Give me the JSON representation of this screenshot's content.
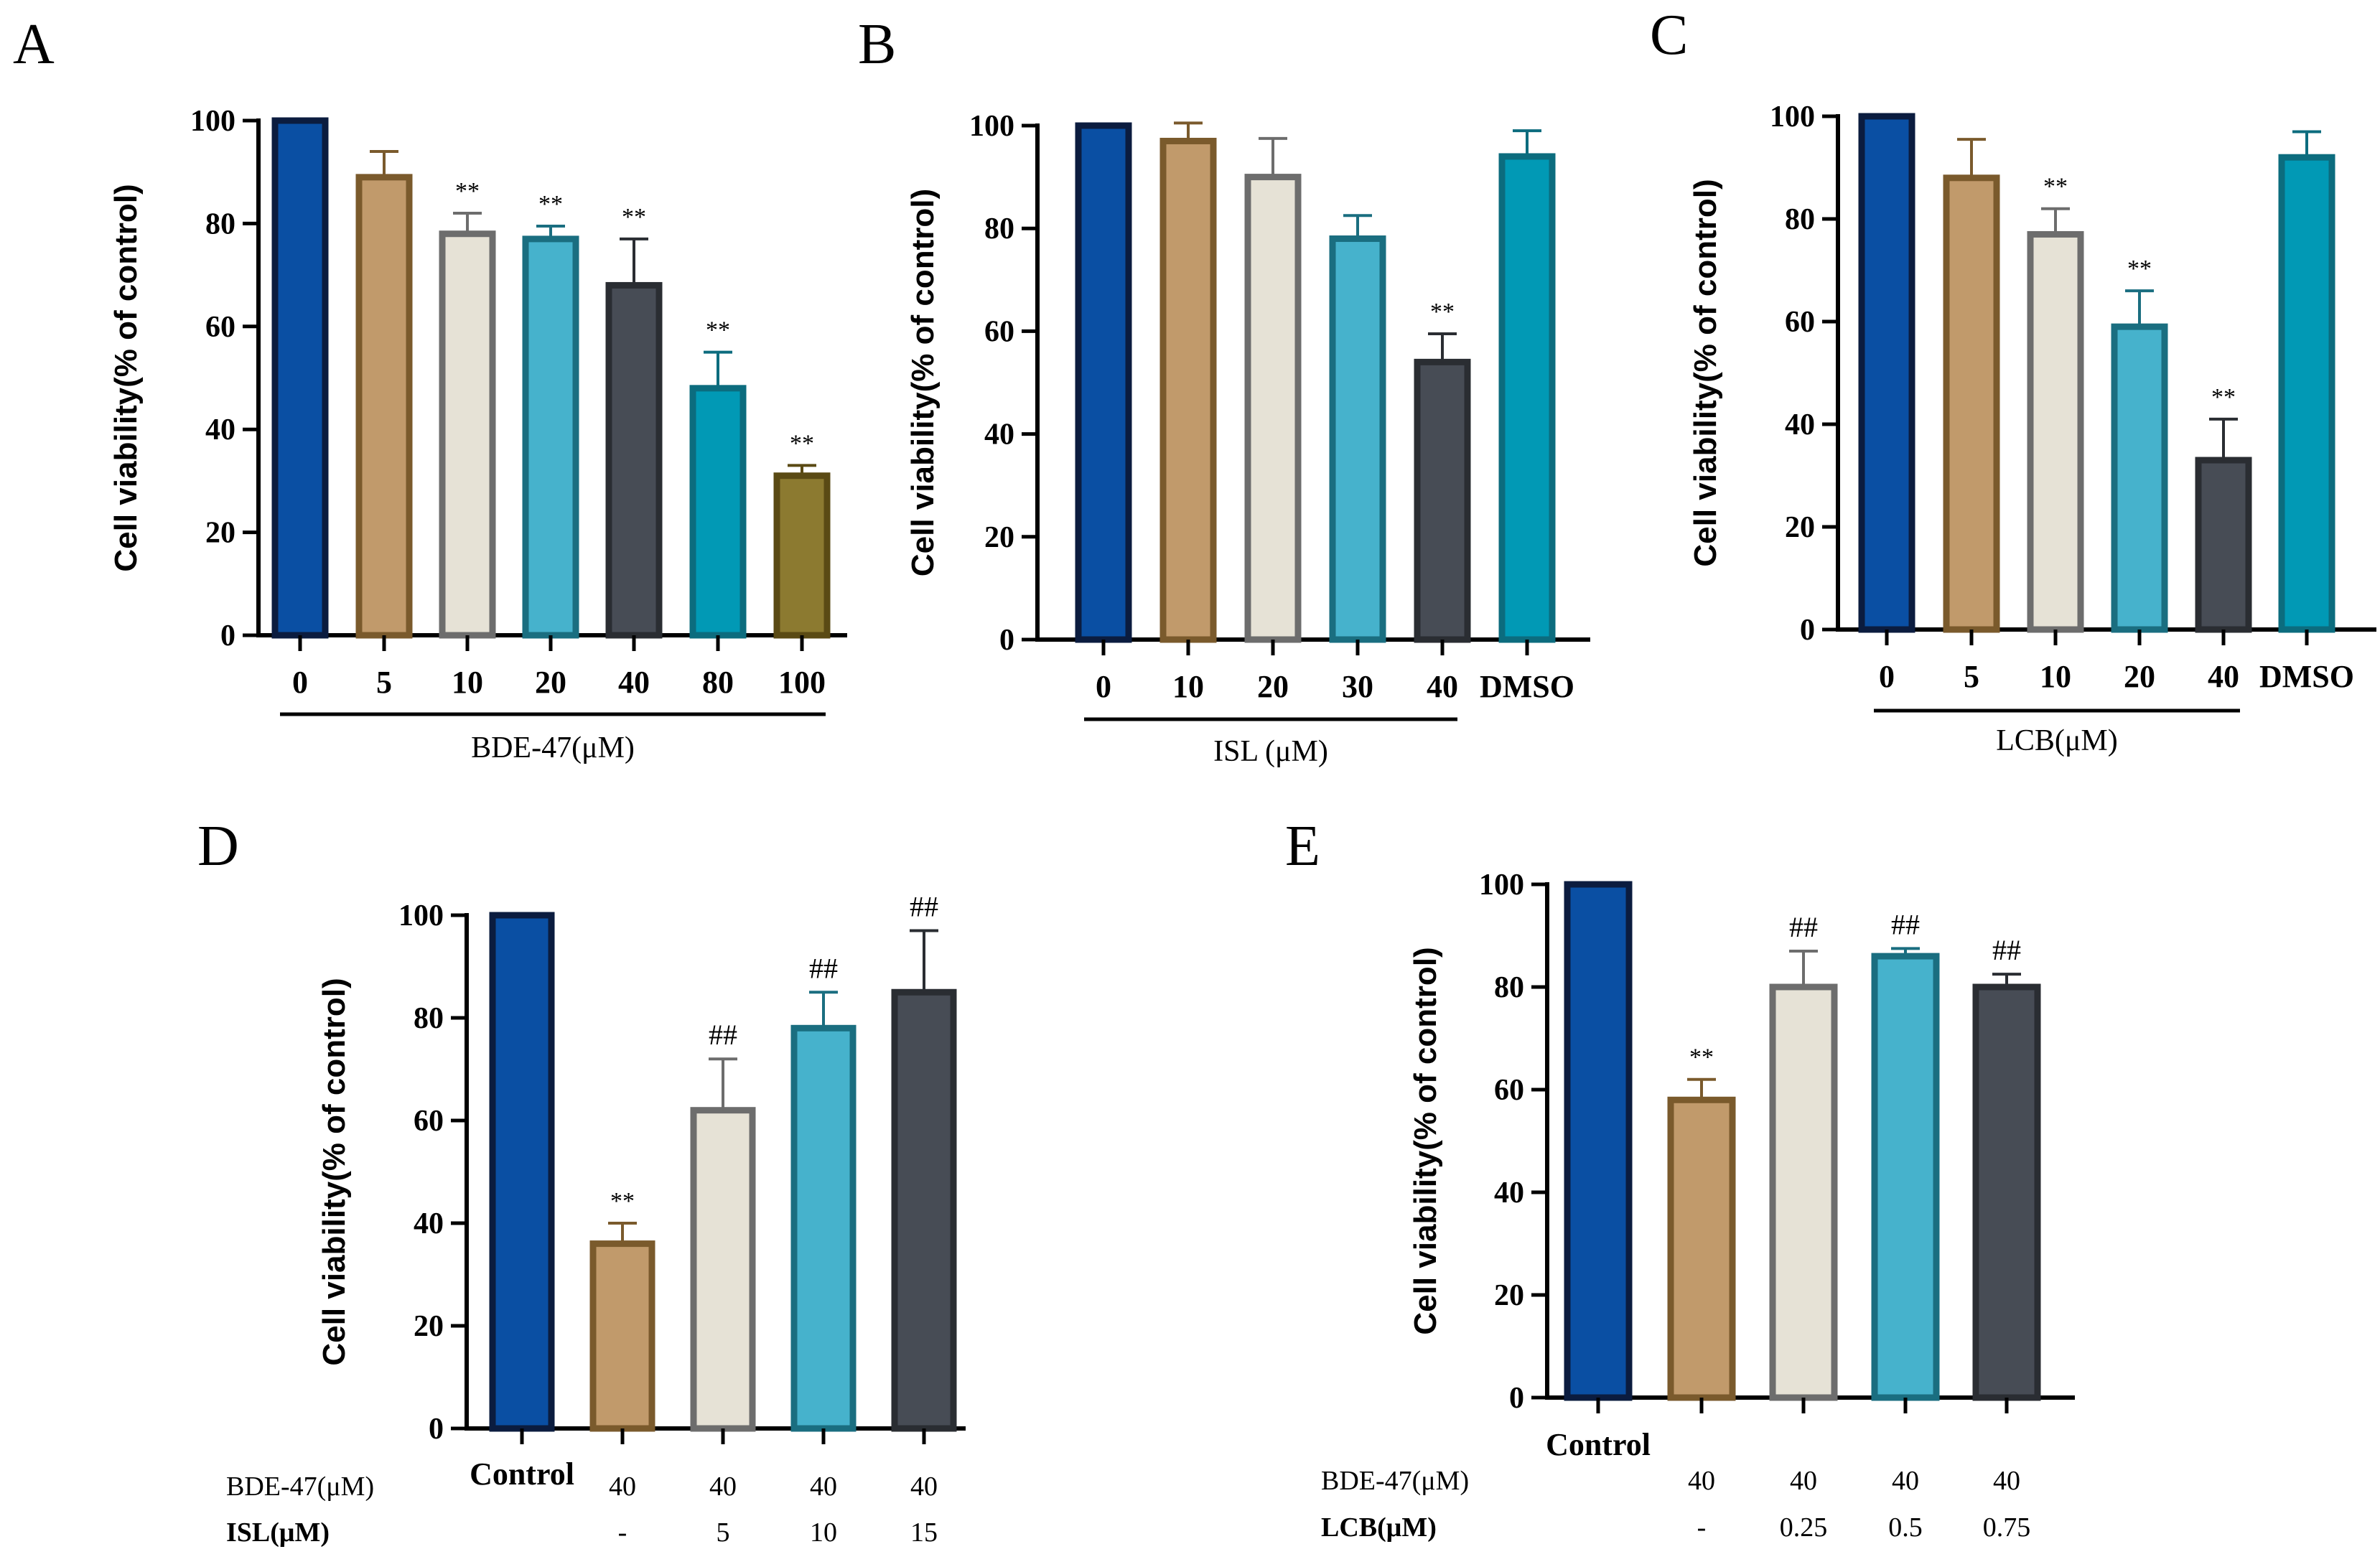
{
  "chart_data": [
    {
      "panel": "A",
      "type": "bar",
      "ylabel": "Cell viability(% of control)",
      "ylim": [
        0,
        100
      ],
      "yticks": [
        0,
        20,
        40,
        60,
        80,
        100
      ],
      "categories": [
        "0",
        "5",
        "10",
        "20",
        "40",
        "80",
        "100"
      ],
      "values": [
        100,
        89,
        78,
        77,
        68,
        48,
        31
      ],
      "errors": [
        0,
        5,
        4,
        2.5,
        9,
        7,
        2
      ],
      "significance": [
        "",
        "",
        "**",
        "**",
        "**",
        "**",
        "**"
      ],
      "colors": [
        "#0a4fa3",
        "#c19a6b",
        "#e6e2d6",
        "#46b2cc",
        "#474c55",
        "#0199b5",
        "#8c7a30"
      ],
      "edges": [
        "#0b1c3f",
        "#7a5a2c",
        "#6d6d6d",
        "#1a6e80",
        "#2a2d32",
        "#0c6c7e",
        "#5a4a14"
      ],
      "xtitle": "BDE-47(μM)",
      "xline_span": [
        0,
        6
      ],
      "extra_categories": []
    },
    {
      "panel": "B",
      "type": "bar",
      "ylabel": "Cell viability(% of control)",
      "ylim": [
        0,
        100
      ],
      "yticks": [
        0,
        20,
        40,
        60,
        80,
        100
      ],
      "categories": [
        "0",
        "10",
        "20",
        "30",
        "40",
        "DMSO"
      ],
      "values": [
        100,
        97,
        90,
        78,
        54,
        94
      ],
      "errors": [
        0,
        3.5,
        7.5,
        4.5,
        5.5,
        5
      ],
      "significance": [
        "",
        "",
        "",
        "",
        "**",
        ""
      ],
      "colors": [
        "#0a4fa3",
        "#c19a6b",
        "#e6e2d6",
        "#46b2cc",
        "#474c55",
        "#0199b5"
      ],
      "edges": [
        "#0b1c3f",
        "#7a5a2c",
        "#6d6d6d",
        "#1a6e80",
        "#2a2d32",
        "#0c6c7e"
      ],
      "xtitle": "ISL (μM)",
      "xline_span": [
        0,
        4
      ]
    },
    {
      "panel": "C",
      "type": "bar",
      "ylabel": "Cell viability(% of control)",
      "ylim": [
        0,
        100
      ],
      "yticks": [
        0,
        20,
        40,
        60,
        80,
        100
      ],
      "categories": [
        "0",
        "5",
        "10",
        "20",
        "40",
        "DMSO"
      ],
      "values": [
        100,
        88,
        77,
        59,
        33,
        92
      ],
      "errors": [
        0,
        7.5,
        5,
        7,
        8,
        5
      ],
      "significance": [
        "",
        "",
        "**",
        "**",
        "**",
        ""
      ],
      "colors": [
        "#0a4fa3",
        "#c19a6b",
        "#e6e2d6",
        "#46b2cc",
        "#474c55",
        "#0199b5"
      ],
      "edges": [
        "#0b1c3f",
        "#7a5a2c",
        "#6d6d6d",
        "#1a6e80",
        "#2a2d32",
        "#0c6c7e"
      ],
      "xtitle": "LCB(μM)",
      "xline_span": [
        0,
        4
      ]
    },
    {
      "panel": "D",
      "type": "bar",
      "ylabel": "Cell viability(% of control)",
      "ylim": [
        0,
        100
      ],
      "yticks": [
        0,
        20,
        40,
        60,
        80,
        100
      ],
      "categories": [
        "Control",
        "",
        "",
        "",
        ""
      ],
      "values": [
        100,
        36,
        62,
        78,
        85
      ],
      "errors": [
        0,
        4,
        10,
        7,
        12
      ],
      "significance": [
        "",
        "**",
        "##",
        "##",
        "##"
      ],
      "colors": [
        "#0a4fa3",
        "#c19a6b",
        "#e6e2d6",
        "#46b2cc",
        "#474c55"
      ],
      "edges": [
        "#0b1c3f",
        "#7a5a2c",
        "#6d6d6d",
        "#1a6e80",
        "#2a2d32"
      ],
      "treatments": [
        {
          "label": "BDE-47(μM)",
          "values": [
            "",
            "40",
            "40",
            "40",
            "40"
          ]
        },
        {
          "label": "ISL(μM)",
          "values": [
            "",
            "-",
            "5",
            "10",
            "15"
          ]
        }
      ]
    },
    {
      "panel": "E",
      "type": "bar",
      "ylabel": "Cell viability(% of control)",
      "ylim": [
        0,
        100
      ],
      "yticks": [
        0,
        20,
        40,
        60,
        80,
        100
      ],
      "categories": [
        "Control",
        "",
        "",
        "",
        ""
      ],
      "values": [
        100,
        58,
        80,
        86,
        80
      ],
      "errors": [
        0,
        4,
        7,
        1.5,
        2.5
      ],
      "significance": [
        "",
        "**",
        "##",
        "##",
        "##"
      ],
      "colors": [
        "#0a4fa3",
        "#c19a6b",
        "#e6e2d6",
        "#46b2cc",
        "#474c55"
      ],
      "edges": [
        "#0b1c3f",
        "#7a5a2c",
        "#6d6d6d",
        "#1a6e80",
        "#2a2d32"
      ],
      "treatments": [
        {
          "label": "BDE-47(μM)",
          "values": [
            "",
            "40",
            "40",
            "40",
            "40"
          ]
        },
        {
          "label": "LCB(μM)",
          "values": [
            "",
            "-",
            "0.25",
            "0.5",
            "0.75"
          ]
        }
      ]
    }
  ]
}
